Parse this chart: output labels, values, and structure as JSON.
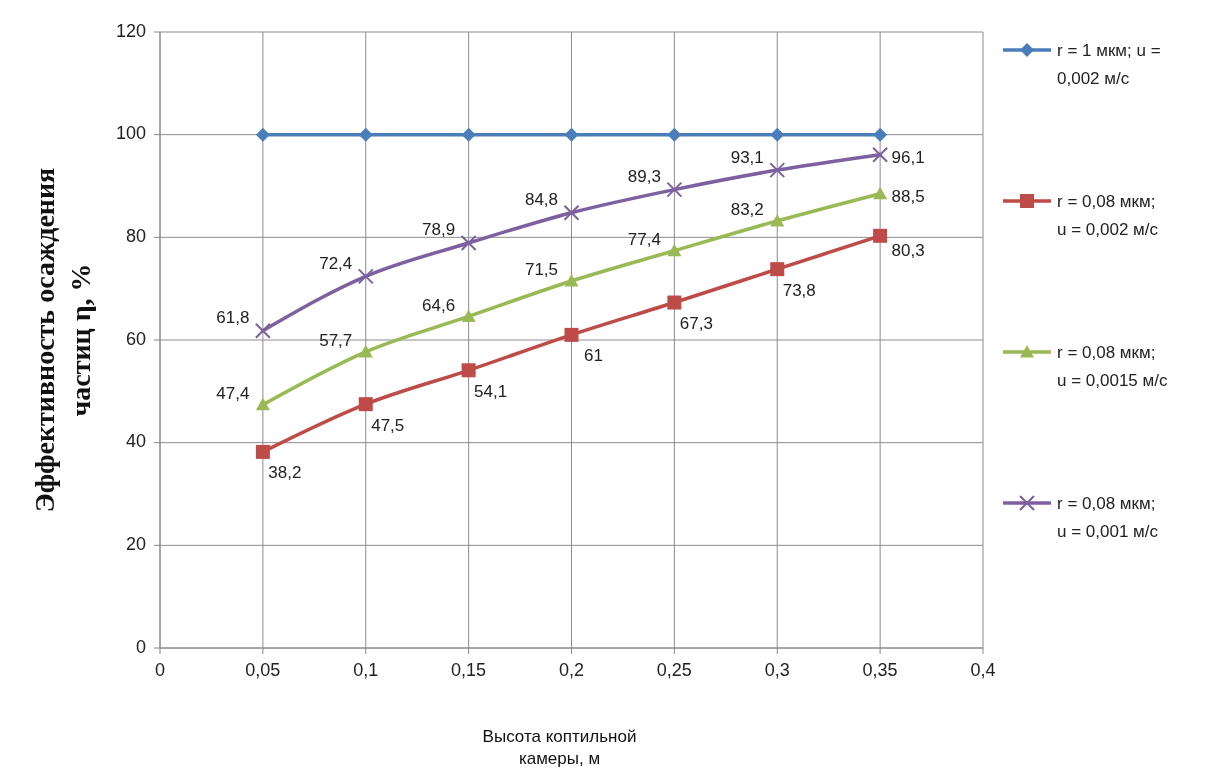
{
  "chart_data": {
    "type": "line",
    "xlabel": "Высота коптильной камеры, м",
    "ylabel": "Эффективность осаждения частиц η, %",
    "x": [
      0.05,
      0.1,
      0.15,
      0.2,
      0.25,
      0.3,
      0.35
    ],
    "xlim": [
      0,
      0.4
    ],
    "xticks": [
      0,
      {
        "value": 0.05,
        "label": "0,05"
      },
      {
        "value": 0.1,
        "label": "0,1"
      },
      {
        "value": 0.15,
        "label": "0,15"
      },
      {
        "value": 0.2,
        "label": "0,2"
      },
      {
        "value": 0.25,
        "label": "0,25"
      },
      {
        "value": 0.3,
        "label": "0,3"
      },
      {
        "value": 0.35,
        "label": "0,35"
      },
      {
        "value": 0.4,
        "label": "0,4"
      }
    ],
    "ylim": [
      0,
      120
    ],
    "yticks": [
      0,
      20,
      40,
      60,
      80,
      100,
      120
    ],
    "grid": true,
    "legend": "right",
    "series": [
      {
        "name": "r = 1 мкм;      u = 0,002 м/с",
        "color": "#4a7ebb",
        "marker": "diamond",
        "values": [
          100,
          100,
          100,
          100,
          100,
          100,
          100
        ]
      },
      {
        "name": "r = 0,08 мкм; u = 0,002 м/с",
        "color": "#be4b48",
        "marker": "square",
        "values": [
          38.2,
          47.5,
          54.1,
          61,
          67.3,
          73.8,
          80.3
        ],
        "value_labels": [
          "38,2",
          "47,5",
          "54,1",
          "61",
          "67,3",
          "73,8",
          "80,3"
        ]
      },
      {
        "name": "r = 0,08 мкм; u = 0,0015 м/с",
        "color": "#98b954",
        "marker": "triangle",
        "values": [
          47.4,
          57.7,
          64.6,
          71.5,
          77.4,
          83.2,
          88.5
        ],
        "value_labels": [
          "47,4",
          "57,7",
          "64,6",
          "71,5",
          "77,4",
          "83,2",
          "88,5"
        ]
      },
      {
        "name": "r = 0,08 мкм; u = 0,001 м/с",
        "color": "#7d60a0",
        "marker": "cross",
        "values": [
          61.8,
          72.4,
          78.9,
          84.8,
          89.3,
          93.1,
          96.1
        ],
        "value_labels": [
          "61,8",
          "72,4",
          "78,9",
          "84,8",
          "89,3",
          "93,1",
          "96,1"
        ]
      }
    ]
  }
}
